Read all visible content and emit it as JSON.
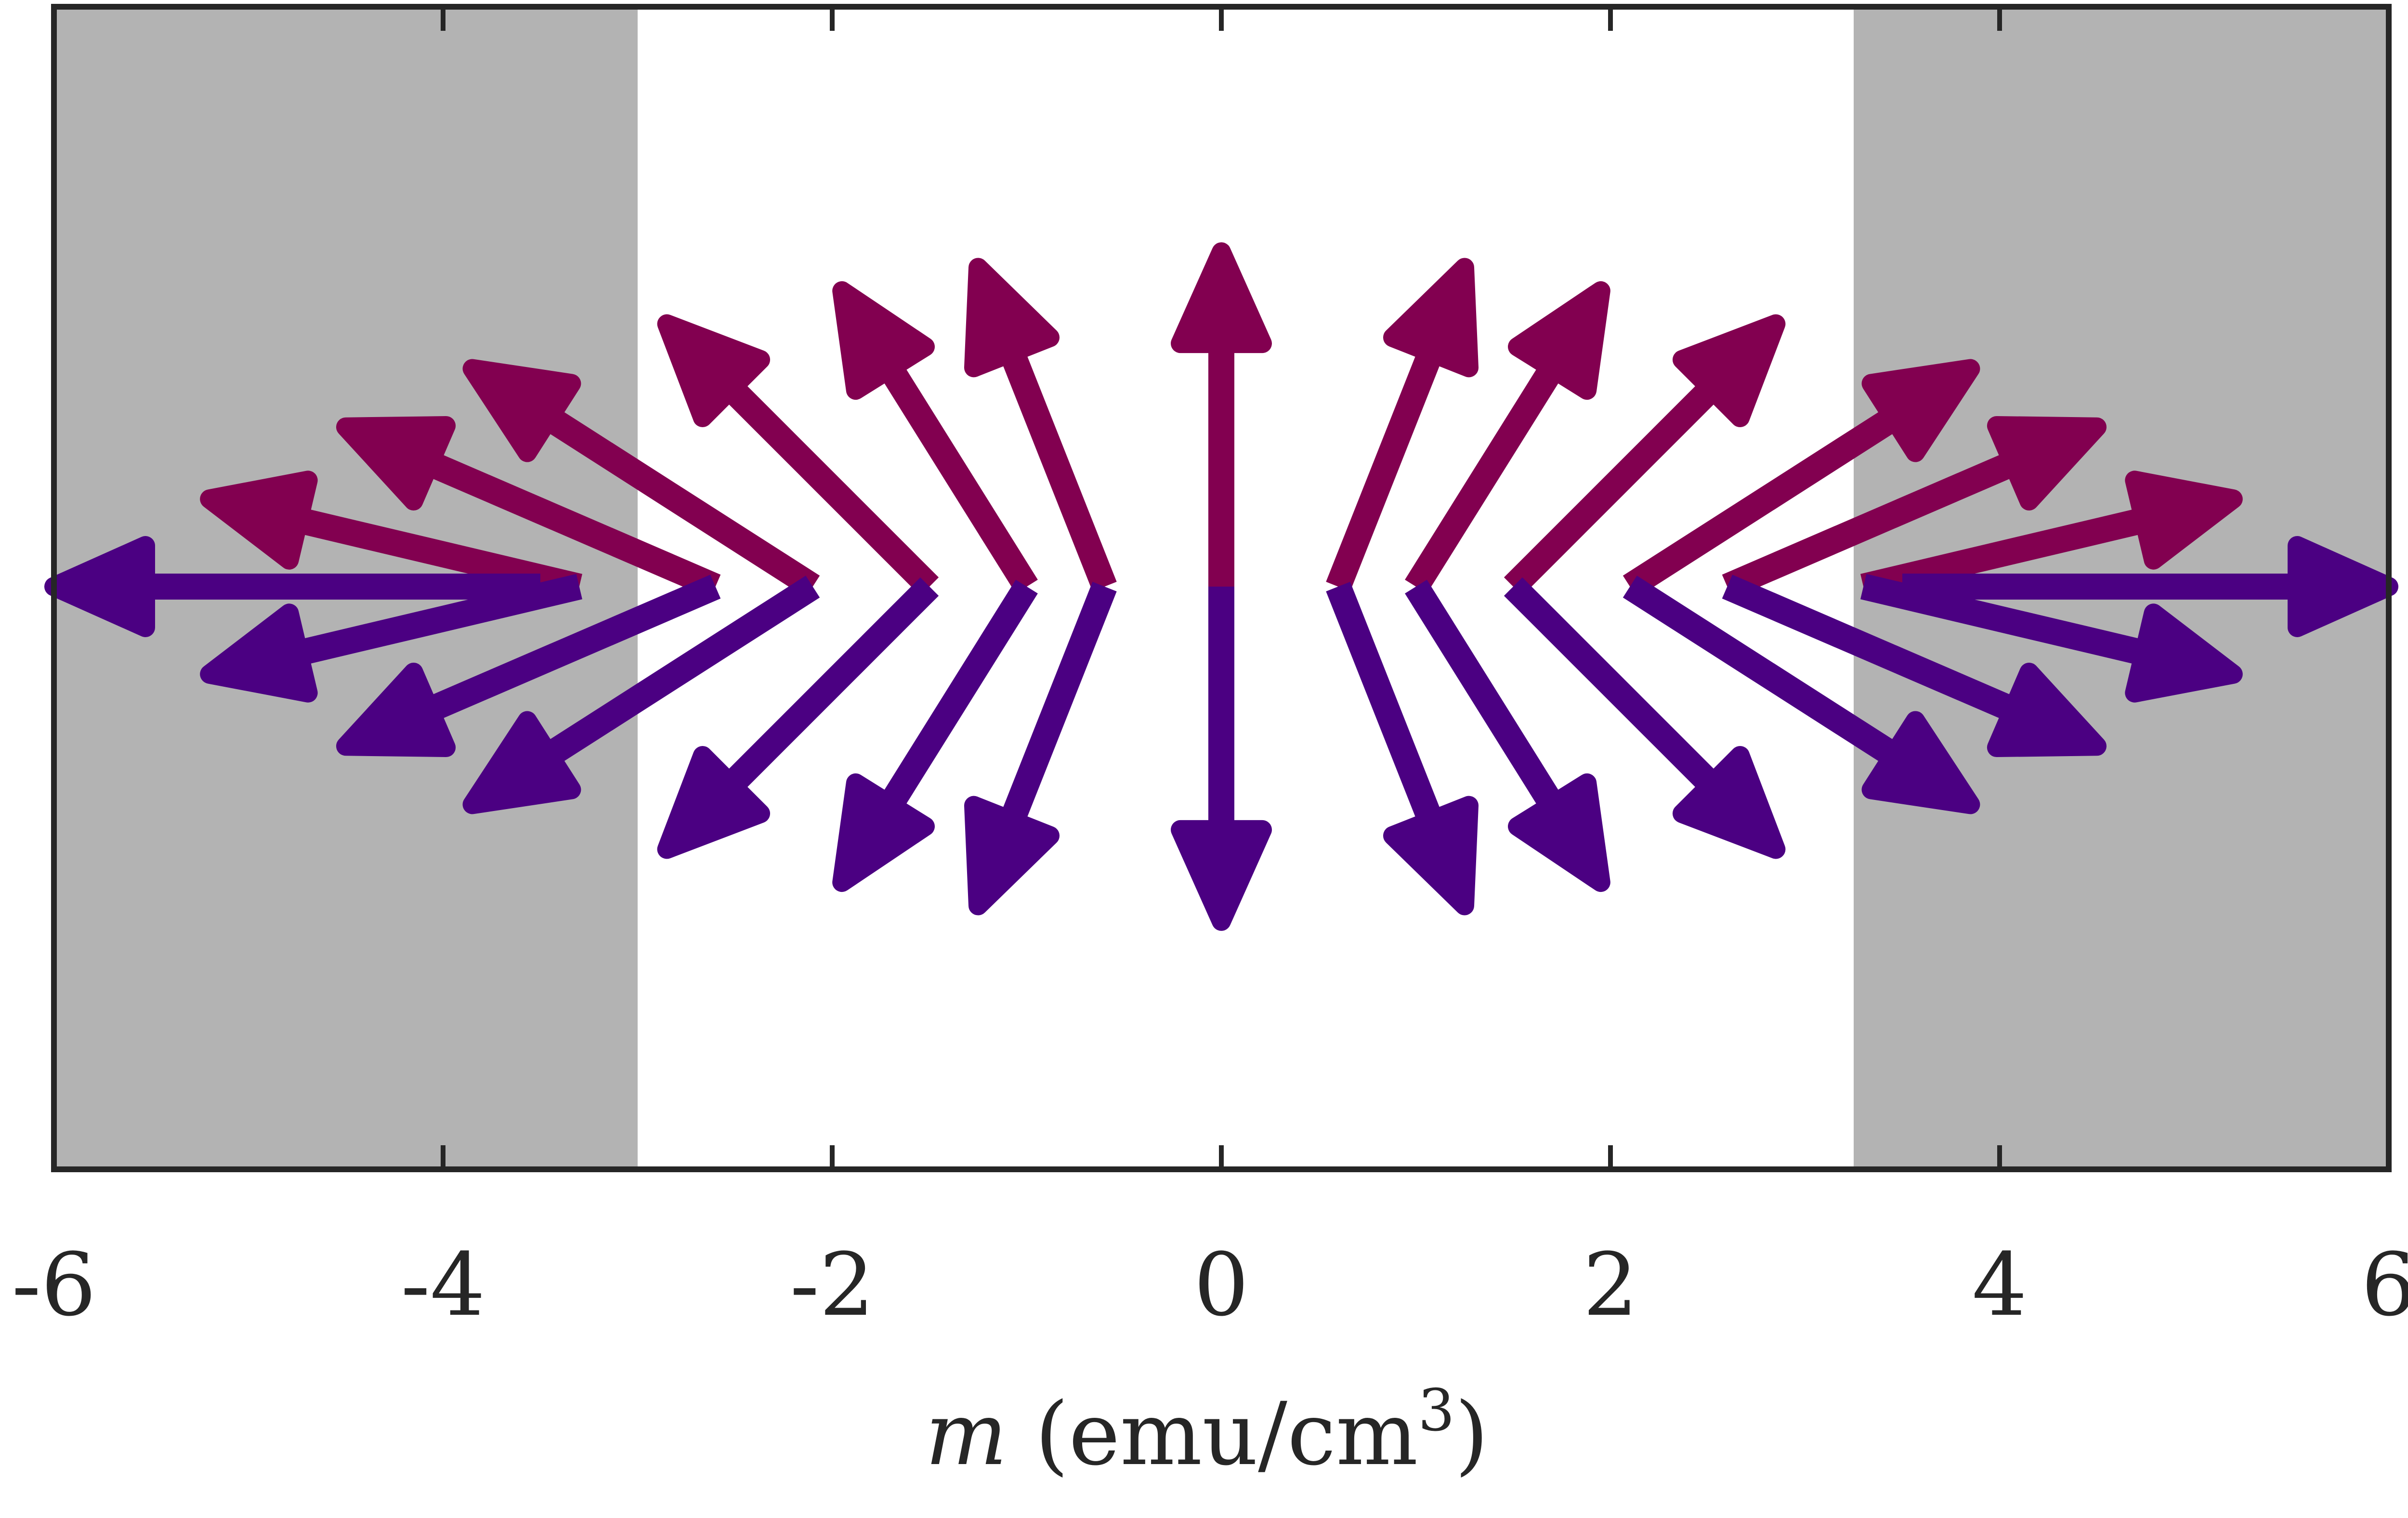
{
  "chart_data": {
    "type": "quiver",
    "xlabel": {
      "variable": "m",
      "unit_open": " (emu/cm",
      "unit_power": "3",
      "unit_close": ")"
    },
    "xlim": [
      -6,
      6
    ],
    "xticks": [
      -6,
      -4,
      -2,
      0,
      2,
      4,
      6
    ],
    "xtick_labels": [
      "-6",
      "-4",
      "-2",
      "0",
      "2",
      "4",
      "6"
    ],
    "shaded_regions": [
      {
        "x_from": -6,
        "x_to": -3.0,
        "color": "#b3b3b3"
      },
      {
        "x_from": 3.25,
        "x_to": 6,
        "color": "#b3b3b3"
      }
    ],
    "series": [
      {
        "color": "#820050",
        "arrows": [
          {
            "x": -3.5,
            "dx": 0
          },
          {
            "x": -3.3,
            "dx": -1.9,
            "dy": 0.45
          },
          {
            "x": -2.6,
            "dx": -1.9,
            "dy": 0.82
          },
          {
            "x": -2.1,
            "dx": -1.75,
            "dy": 1.12
          },
          {
            "x": -1.5,
            "dx": -1.35,
            "dy": 1.35
          },
          {
            "x": -1.0,
            "dx": -0.95,
            "dy": 1.52
          },
          {
            "x": -0.6,
            "dx": -0.65,
            "dy": 1.64
          },
          {
            "x": 0.0,
            "dx": 0.0,
            "dy": 1.72
          },
          {
            "x": 0.6,
            "dx": 0.65,
            "dy": 1.64
          },
          {
            "x": 1.0,
            "dx": 0.95,
            "dy": 1.52
          },
          {
            "x": 1.5,
            "dx": 1.35,
            "dy": 1.35
          },
          {
            "x": 2.1,
            "dx": 1.75,
            "dy": 1.12
          },
          {
            "x": 2.6,
            "dx": 1.9,
            "dy": 0.82
          },
          {
            "x": 3.3,
            "dx": 1.9,
            "dy": 0.45
          },
          {
            "x": 3.5,
            "dx": 0
          }
        ]
      },
      {
        "color": "#4b0082",
        "arrows": [
          {
            "x": -3.5,
            "dx": -2.5,
            "dy": 0
          },
          {
            "x": -3.3,
            "dx": -1.9,
            "dy": -0.45
          },
          {
            "x": -2.6,
            "dx": -1.9,
            "dy": -0.82
          },
          {
            "x": -2.1,
            "dx": -1.75,
            "dy": -1.12
          },
          {
            "x": -1.5,
            "dx": -1.35,
            "dy": -1.35
          },
          {
            "x": -1.0,
            "dx": -0.95,
            "dy": -1.52
          },
          {
            "x": -0.6,
            "dx": -0.65,
            "dy": -1.64
          },
          {
            "x": 0.0,
            "dx": 0.0,
            "dy": -1.72
          },
          {
            "x": 0.6,
            "dx": 0.65,
            "dy": -1.64
          },
          {
            "x": 1.0,
            "dx": 0.95,
            "dy": -1.52
          },
          {
            "x": 1.5,
            "dx": 1.35,
            "dy": -1.35
          },
          {
            "x": 2.1,
            "dx": 1.75,
            "dy": -1.12
          },
          {
            "x": 2.6,
            "dx": 1.9,
            "dy": -0.82
          },
          {
            "x": 3.3,
            "dx": 1.9,
            "dy": -0.45
          },
          {
            "x": 3.5,
            "dx": 2.5,
            "dy": 0
          }
        ]
      }
    ],
    "grid": false,
    "frame_color": "#262626"
  }
}
